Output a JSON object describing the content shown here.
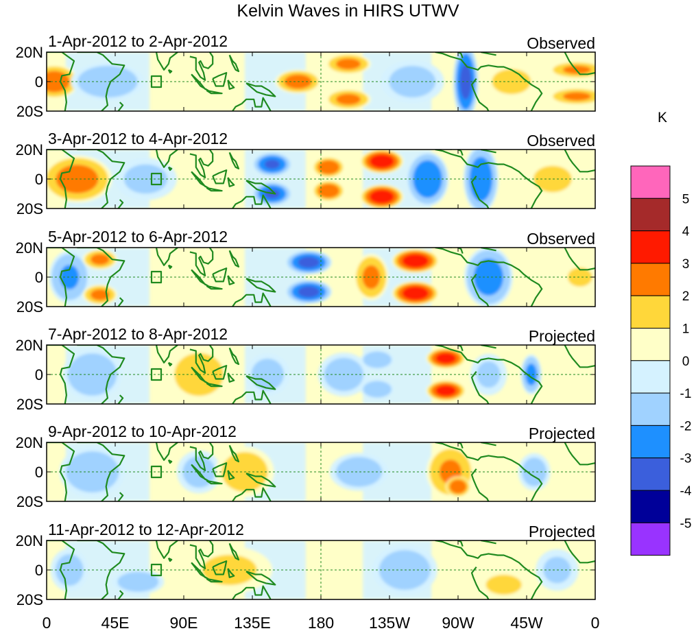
{
  "chart_data": {
    "type": "heatmap",
    "title": "Kelvin Waves in HIRS UTWV",
    "x_ticks": [
      "0",
      "45E",
      "90E",
      "135E",
      "180",
      "135W",
      "90W",
      "45W",
      "0"
    ],
    "y_ticks": [
      "20N",
      "0",
      "20S"
    ],
    "colorbar": {
      "unit": "K",
      "levels": [
        -5,
        -4,
        -3,
        -2,
        -1,
        0,
        1,
        2,
        3,
        4,
        5
      ],
      "colors": [
        "#9933ff",
        "#000099",
        "#3b5fdc",
        "#1e90ff",
        "#a0d2ff",
        "#d5f2ff",
        "#ffffc8",
        "#ffd73a",
        "#ff7a00",
        "#ff1a00",
        "#a52a2a",
        "#ff66bb"
      ]
    },
    "panels": [
      {
        "date_range": "1-Apr-2012 to 2-Apr-2012",
        "status": "Observed",
        "features": [
          {
            "lon": 5,
            "lat": 0,
            "v": 2.5,
            "sx": 14,
            "sy": 10
          },
          {
            "lon": 40,
            "lat": 0,
            "v": -1.6,
            "sx": 22,
            "sy": 12
          },
          {
            "lon": 165,
            "lat": 0,
            "v": 2.4,
            "sx": 13,
            "sy": 7
          },
          {
            "lon": 198,
            "lat": 12,
            "v": 2.2,
            "sx": 13,
            "sy": 6
          },
          {
            "lon": 198,
            "lat": -12,
            "v": 2.2,
            "sx": 13,
            "sy": 6
          },
          {
            "lon": 240,
            "lat": 0,
            "v": -1.2,
            "sx": 20,
            "sy": 14
          },
          {
            "lon": 275,
            "lat": 0,
            "v": -3.2,
            "sx": 7,
            "sy": 22
          },
          {
            "lon": 305,
            "lat": 0,
            "v": 1.1,
            "sx": 18,
            "sy": 12
          },
          {
            "lon": 348,
            "lat": 8,
            "v": 2.1,
            "sx": 16,
            "sy": 5
          },
          {
            "lon": 348,
            "lat": -10,
            "v": 2.1,
            "sx": 16,
            "sy": 5
          }
        ]
      },
      {
        "date_range": "3-Apr-2012 to 4-Apr-2012",
        "status": "Observed",
        "features": [
          {
            "lon": 20,
            "lat": 0,
            "v": 2.4,
            "sx": 20,
            "sy": 14
          },
          {
            "lon": 65,
            "lat": 0,
            "v": -1.1,
            "sx": 20,
            "sy": 14
          },
          {
            "lon": 148,
            "lat": 10,
            "v": -3.0,
            "sx": 11,
            "sy": 7
          },
          {
            "lon": 148,
            "lat": -10,
            "v": -3.0,
            "sx": 11,
            "sy": 7
          },
          {
            "lon": 185,
            "lat": 8,
            "v": 2.8,
            "sx": 9,
            "sy": 6
          },
          {
            "lon": 185,
            "lat": -8,
            "v": 2.8,
            "sx": 9,
            "sy": 6
          },
          {
            "lon": 220,
            "lat": 12,
            "v": 3.6,
            "sx": 12,
            "sy": 7
          },
          {
            "lon": 220,
            "lat": -12,
            "v": 3.6,
            "sx": 12,
            "sy": 7
          },
          {
            "lon": 250,
            "lat": 0,
            "v": -2.8,
            "sx": 12,
            "sy": 16
          },
          {
            "lon": 285,
            "lat": 0,
            "v": -2.6,
            "sx": 10,
            "sy": 20
          },
          {
            "lon": 332,
            "lat": 0,
            "v": 1.6,
            "sx": 14,
            "sy": 10
          }
        ]
      },
      {
        "date_range": "5-Apr-2012 to 6-Apr-2012",
        "status": "Observed",
        "features": [
          {
            "lon": 15,
            "lat": 0,
            "v": -2.0,
            "sx": 12,
            "sy": 16
          },
          {
            "lon": 35,
            "lat": 12,
            "v": 2.2,
            "sx": 10,
            "sy": 6
          },
          {
            "lon": 35,
            "lat": -12,
            "v": 2.2,
            "sx": 10,
            "sy": 6
          },
          {
            "lon": 172,
            "lat": 10,
            "v": -3.2,
            "sx": 13,
            "sy": 7
          },
          {
            "lon": 172,
            "lat": -10,
            "v": -3.2,
            "sx": 13,
            "sy": 7
          },
          {
            "lon": 213,
            "lat": 0,
            "v": 2.1,
            "sx": 10,
            "sy": 14
          },
          {
            "lon": 242,
            "lat": 11,
            "v": 3.6,
            "sx": 13,
            "sy": 7
          },
          {
            "lon": 242,
            "lat": -11,
            "v": 3.6,
            "sx": 13,
            "sy": 7
          },
          {
            "lon": 290,
            "lat": 0,
            "v": -2.4,
            "sx": 14,
            "sy": 18
          },
          {
            "lon": 350,
            "lat": 0,
            "v": 1.3,
            "sx": 10,
            "sy": 8
          }
        ]
      },
      {
        "date_range": "7-Apr-2012 to 8-Apr-2012",
        "status": "Projected",
        "features": [
          {
            "lon": 30,
            "lat": 0,
            "v": -1.6,
            "sx": 18,
            "sy": 16
          },
          {
            "lon": 100,
            "lat": 0,
            "v": 1.3,
            "sx": 20,
            "sy": 18
          },
          {
            "lon": 145,
            "lat": 0,
            "v": -1.2,
            "sx": 14,
            "sy": 14
          },
          {
            "lon": 195,
            "lat": 0,
            "v": -1.3,
            "sx": 16,
            "sy": 14
          },
          {
            "lon": 217,
            "lat": 10,
            "v": -1.8,
            "sx": 10,
            "sy": 6
          },
          {
            "lon": 217,
            "lat": -10,
            "v": -1.8,
            "sx": 10,
            "sy": 6
          },
          {
            "lon": 262,
            "lat": 11,
            "v": 3.4,
            "sx": 11,
            "sy": 6
          },
          {
            "lon": 262,
            "lat": -11,
            "v": 3.4,
            "sx": 11,
            "sy": 6
          },
          {
            "lon": 290,
            "lat": 0,
            "v": -1.0,
            "sx": 12,
            "sy": 14
          },
          {
            "lon": 318,
            "lat": 0,
            "v": -2.2,
            "sx": 6,
            "sy": 12
          }
        ]
      },
      {
        "date_range": "9-Apr-2012 to 10-Apr-2012",
        "status": "Projected",
        "features": [
          {
            "lon": 30,
            "lat": 0,
            "v": -1.5,
            "sx": 20,
            "sy": 16
          },
          {
            "lon": 100,
            "lat": 0,
            "v": -1.2,
            "sx": 14,
            "sy": 14
          },
          {
            "lon": 130,
            "lat": 0,
            "v": 1.4,
            "sx": 18,
            "sy": 16
          },
          {
            "lon": 205,
            "lat": 0,
            "v": -1.4,
            "sx": 18,
            "sy": 12
          },
          {
            "lon": 265,
            "lat": 0,
            "v": 2.0,
            "sx": 14,
            "sy": 16
          },
          {
            "lon": 270,
            "lat": -10,
            "v": 2.8,
            "sx": 7,
            "sy": 6
          },
          {
            "lon": 320,
            "lat": 0,
            "v": -1.3,
            "sx": 10,
            "sy": 12
          }
        ]
      },
      {
        "date_range": "11-Apr-2012 to 12-Apr-2012",
        "status": "Projected",
        "features": [
          {
            "lon": 15,
            "lat": 0,
            "v": -1.2,
            "sx": 12,
            "sy": 14
          },
          {
            "lon": 60,
            "lat": -8,
            "v": -1.4,
            "sx": 16,
            "sy": 8
          },
          {
            "lon": 120,
            "lat": 0,
            "v": 1.0,
            "sx": 28,
            "sy": 16
          },
          {
            "lon": 235,
            "lat": 0,
            "v": -1.4,
            "sx": 20,
            "sy": 16
          },
          {
            "lon": 300,
            "lat": -10,
            "v": 1.4,
            "sx": 14,
            "sy": 8
          },
          {
            "lon": 335,
            "lat": 0,
            "v": -1.0,
            "sx": 14,
            "sy": 14
          }
        ]
      }
    ]
  }
}
